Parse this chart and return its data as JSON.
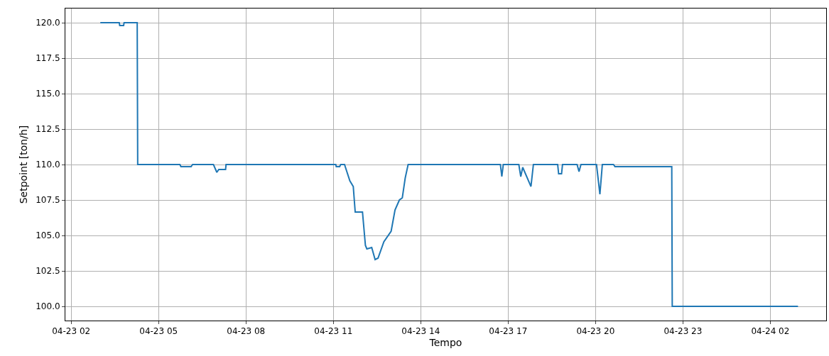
{
  "chart_data": {
    "type": "line",
    "xlabel": "Tempo",
    "ylabel": "Setpoint [ton/h]",
    "x": [
      "--04-23T03:00",
      "--04-23T03:39",
      "--04-23T03:40",
      "--04-23T03:48",
      "--04-23T03:49",
      "--04-23T04:16",
      "--04-23T04:17",
      "--04-23T05:44",
      "--04-23T05:46",
      "--04-23T06:07",
      "--04-23T06:10",
      "--04-23T06:53",
      "--04-23T07:00",
      "--04-23T07:04",
      "--04-23T07:18",
      "--04-23T07:19",
      "--04-23T11:05",
      "--04-23T11:06",
      "--04-23T11:13",
      "--04-23T11:15",
      "--04-23T11:23",
      "--04-23T11:34",
      "--04-23T11:41",
      "--04-23T11:45",
      "--04-23T12:00",
      "--04-23T12:06",
      "--04-23T12:09",
      "--04-23T12:19",
      "--04-23T12:26",
      "--04-23T12:32",
      "--04-23T12:44",
      "--04-23T12:59",
      "--04-23T13:07",
      "--04-23T13:16",
      "--04-23T13:22",
      "--04-23T13:28",
      "--04-23T13:34",
      "--04-23T16:44",
      "--04-23T16:47",
      "--04-23T16:50",
      "--04-23T17:22",
      "--04-23T17:26",
      "--04-23T17:30",
      "--04-23T17:47",
      "--04-23T17:52",
      "--04-23T18:42",
      "--04-23T18:44",
      "--04-23T18:50",
      "--04-23T18:52",
      "--04-23T19:22",
      "--04-23T19:26",
      "--04-23T19:30",
      "--04-23T20:02",
      "--04-23T20:09",
      "--04-23T20:14",
      "--04-23T20:37",
      "--04-23T20:40",
      "--04-23T22:37",
      "--04-23T22:38",
      "--04-24T02:57"
    ],
    "series": [
      {
        "color": "#1f77b4",
        "values": [
          120,
          120,
          119.8,
          119.8,
          120,
          120,
          110,
          110,
          109.85,
          109.85,
          110,
          110,
          109.45,
          109.65,
          109.65,
          110,
          110,
          109.85,
          109.85,
          110,
          110,
          108.85,
          108.45,
          106.65,
          106.65,
          104.3,
          104.05,
          104.15,
          103.3,
          103.4,
          104.55,
          105.3,
          106.8,
          107.5,
          107.65,
          109.05,
          110,
          110,
          109.15,
          110,
          110,
          109.15,
          109.8,
          108.45,
          110,
          110,
          109.35,
          109.35,
          110,
          110,
          109.5,
          110,
          110,
          107.9,
          110,
          110,
          109.85,
          109.85,
          100,
          100
        ]
      }
    ],
    "xlim": [
      "--04-23T01:48",
      "--04-24T03:55"
    ],
    "xticks": [
      {
        "value": "--04-23T02:00",
        "label": "04-23 02"
      },
      {
        "value": "--04-23T05:00",
        "label": "04-23 05"
      },
      {
        "value": "--04-23T08:00",
        "label": "04-23 08"
      },
      {
        "value": "--04-23T11:00",
        "label": "04-23 11"
      },
      {
        "value": "--04-23T14:00",
        "label": "04-23 14"
      },
      {
        "value": "--04-23T17:00",
        "label": "04-23 17"
      },
      {
        "value": "--04-23T20:00",
        "label": "04-23 20"
      },
      {
        "value": "--04-23T23:00",
        "label": "04-23 23"
      },
      {
        "value": "--04-24T02:00",
        "label": "04-24 02"
      }
    ],
    "ylim": [
      99,
      121
    ],
    "yticks": [
      {
        "value": 100,
        "label": "100.0"
      },
      {
        "value": 102.5,
        "label": "102.5"
      },
      {
        "value": 105,
        "label": "105.0"
      },
      {
        "value": 107.5,
        "label": "107.5"
      },
      {
        "value": 110,
        "label": "110.0"
      },
      {
        "value": 112.5,
        "label": "112.5"
      },
      {
        "value": 115,
        "label": "115.0"
      },
      {
        "value": 117.5,
        "label": "117.5"
      },
      {
        "value": 120,
        "label": "120.0"
      }
    ],
    "grid": true,
    "marker": "none",
    "line_style": "solid"
  }
}
